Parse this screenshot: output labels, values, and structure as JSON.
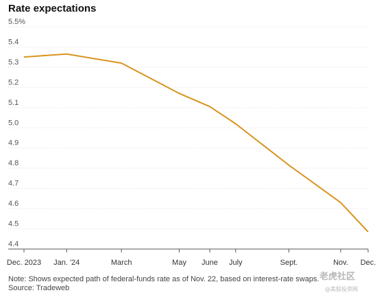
{
  "chart_data": {
    "type": "line",
    "title": "Rate expectations",
    "x": [
      "Dec. 2023",
      "Jan. '24",
      "March",
      "May",
      "June",
      "July",
      "Sept.",
      "Nov.",
      "Dec."
    ],
    "x_positions": [
      0,
      1.4,
      3.2,
      5.1,
      6.1,
      6.95,
      8.7,
      10.4,
      11.3
    ],
    "series": [
      {
        "values": [
          5.35,
          5.365,
          5.32,
          5.17,
          5.105,
          5.02,
          4.815,
          4.63,
          4.485
        ],
        "color": "#d9931e"
      }
    ],
    "y_ticks": [
      "5.5%",
      "5.4",
      "5.3",
      "5.2",
      "5.1",
      "5.0",
      "4.9",
      "4.8",
      "4.7",
      "4.6",
      "4.5",
      "4.4"
    ],
    "ylim": [
      4.4,
      5.5
    ],
    "xlim": [
      0,
      11.3
    ],
    "grid": true,
    "note": "Note: Shows expected path of federal-funds rate as of Nov. 22, based on interest-rate swaps.",
    "source": "Source: Tradeweb"
  },
  "watermark": {
    "line1": "老虎社区",
    "line2": "@美股投资网"
  }
}
